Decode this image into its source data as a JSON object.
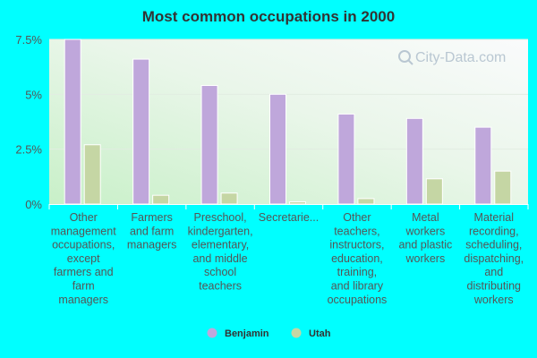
{
  "chart_data": {
    "type": "bar",
    "title": "Most common occupations in 2000",
    "categories": [
      [
        "Other",
        "management",
        "occupations,",
        "except",
        "farmers and",
        "farm",
        "managers"
      ],
      [
        "Farmers",
        "and farm",
        "managers"
      ],
      [
        "Preschool,",
        "kindergarten,",
        "elementary,",
        "and middle",
        "school",
        "teachers"
      ],
      [
        "Secretarie..."
      ],
      [
        "Other",
        "teachers,",
        "instructors,",
        "education,",
        "training,",
        "and library",
        "occupations"
      ],
      [
        "Metal",
        "workers",
        "and plastic",
        "workers"
      ],
      [
        "Material",
        "recording,",
        "scheduling,",
        "dispatching,",
        "and",
        "distributing",
        "workers"
      ]
    ],
    "series": [
      {
        "name": "Benjamin",
        "color": "#bfa7db",
        "values": [
          7.5,
          6.6,
          5.4,
          5.0,
          4.1,
          3.9,
          3.5
        ]
      },
      {
        "name": "Utah",
        "color": "#c5d6a4",
        "values": [
          2.7,
          0.4,
          0.5,
          0.1,
          0.25,
          1.15,
          1.5
        ]
      }
    ],
    "yticks": [
      "0%",
      "2.5%",
      "5%",
      "7.5%"
    ],
    "ytick_values": [
      0,
      2.5,
      5,
      7.5
    ],
    "ylim": [
      0,
      7.5
    ],
    "grid": true,
    "legend": "bottom-center",
    "watermark": "City-Data.com"
  }
}
